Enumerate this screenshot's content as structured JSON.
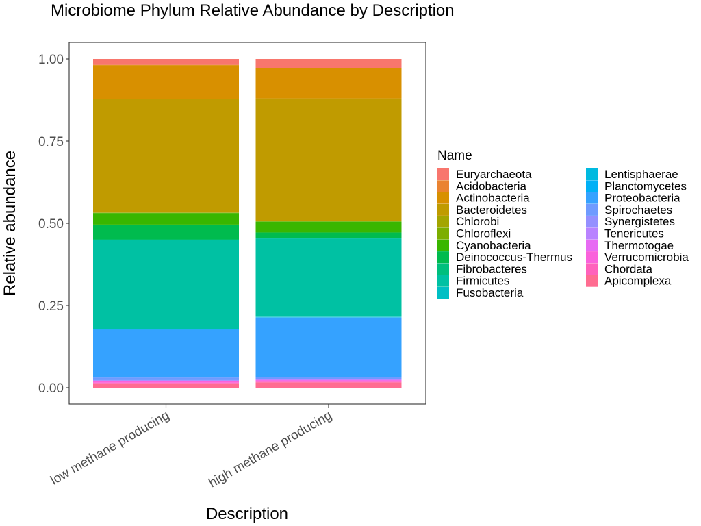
{
  "chart_data": {
    "type": "bar",
    "stacked": true,
    "title": "Microbiome Phylum Relative Abundance by Description",
    "xlabel": "Description",
    "ylabel": "Relative abundance",
    "ylim": [
      0,
      1.0
    ],
    "yticks": [
      0.0,
      0.25,
      0.5,
      0.75,
      1.0
    ],
    "ytick_labels": [
      "0.00",
      "0.25",
      "0.50",
      "0.75",
      "1.00"
    ],
    "grid": false,
    "legend_position": "right",
    "legend_title": "Name",
    "categories": [
      "low methane producing",
      "high methane producing"
    ],
    "series": [
      {
        "name": "Euryarchaeota",
        "color": "#F8766D",
        "values": [
          0.018,
          0.028
        ]
      },
      {
        "name": "Acidobacteria",
        "color": "#EA8331",
        "values": [
          0.001,
          0.001
        ]
      },
      {
        "name": "Actinobacteria",
        "color": "#D89000",
        "values": [
          0.103,
          0.091
        ]
      },
      {
        "name": "Bacteroidetes",
        "color": "#C09B00",
        "values": [
          0.345,
          0.373
        ]
      },
      {
        "name": "Chlorobi",
        "color": "#A3A500",
        "values": [
          0.001,
          0.001
        ]
      },
      {
        "name": "Chloroflexi",
        "color": "#7CAE00",
        "values": [
          0.001,
          0.001
        ]
      },
      {
        "name": "Cyanobacteria",
        "color": "#39B600",
        "values": [
          0.035,
          0.033
        ]
      },
      {
        "name": "Deinococcus-Thermus",
        "color": "#00BB4E",
        "values": [
          0.045,
          0.016
        ]
      },
      {
        "name": "Fibrobacteres",
        "color": "#00BF7D",
        "values": [
          0.002,
          0.002
        ]
      },
      {
        "name": "Firmicutes",
        "color": "#00C1A3",
        "values": [
          0.27,
          0.238
        ]
      },
      {
        "name": "Fusobacteria",
        "color": "#00BFC4",
        "values": [
          0.001,
          0.001
        ]
      },
      {
        "name": "Lentisphaerae",
        "color": "#00BAE0",
        "values": [
          0.001,
          0.001
        ]
      },
      {
        "name": "Planctomycetes",
        "color": "#00B0F6",
        "values": [
          0.001,
          0.001
        ]
      },
      {
        "name": "Proteobacteria",
        "color": "#35A2FF",
        "values": [
          0.145,
          0.18
        ]
      },
      {
        "name": "Spirochaetes",
        "color": "#6F9BFF",
        "values": [
          0.008,
          0.007
        ]
      },
      {
        "name": "Synergistetes",
        "color": "#9590FF",
        "values": [
          0.001,
          0.001
        ]
      },
      {
        "name": "Tenericutes",
        "color": "#B983FF",
        "values": [
          0.002,
          0.002
        ]
      },
      {
        "name": "Thermotogae",
        "color": "#E76BF3",
        "values": [
          0.001,
          0.001
        ]
      },
      {
        "name": "Verrucomicrobia",
        "color": "#FA62DB",
        "values": [
          0.004,
          0.004
        ]
      },
      {
        "name": "Chordata",
        "color": "#FF62BC",
        "values": [
          0.002,
          0.002
        ]
      },
      {
        "name": "Apicomplexa",
        "color": "#FF6C91",
        "values": [
          0.013,
          0.016
        ]
      }
    ]
  }
}
